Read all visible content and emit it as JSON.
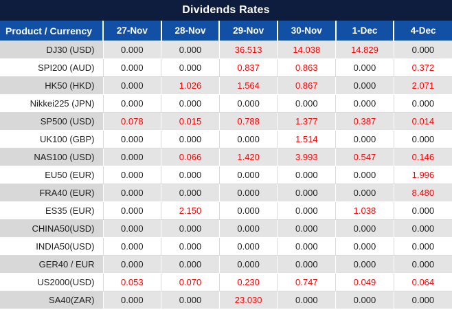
{
  "title": "Dividends Rates",
  "columns": [
    "Product / Currency",
    "27-Nov",
    "28-Nov",
    "29-Nov",
    "30-Nov",
    "1-Dec",
    "4-Dec"
  ],
  "rows": [
    {
      "product": "DJ30 (USD)",
      "values": [
        "0.000",
        "0.000",
        "36.513",
        "14.038",
        "14.829",
        "0.000"
      ],
      "red": [
        false,
        false,
        true,
        true,
        true,
        false
      ]
    },
    {
      "product": "SPI200 (AUD)",
      "values": [
        "0.000",
        "0.000",
        "0.837",
        "0.863",
        "0.000",
        "0.372"
      ],
      "red": [
        false,
        false,
        true,
        true,
        false,
        true
      ]
    },
    {
      "product": "HK50 (HKD)",
      "values": [
        "0.000",
        "1.026",
        "1.564",
        "0.867",
        "0.000",
        "2.071"
      ],
      "red": [
        false,
        true,
        true,
        true,
        false,
        true
      ]
    },
    {
      "product": "Nikkei225 (JPN)",
      "values": [
        "0.000",
        "0.000",
        "0.000",
        "0.000",
        "0.000",
        "0.000"
      ],
      "red": [
        false,
        false,
        false,
        false,
        false,
        false
      ]
    },
    {
      "product": "SP500 (USD)",
      "values": [
        "0.078",
        "0.015",
        "0.788",
        "1.377",
        "0.387",
        "0.014"
      ],
      "red": [
        true,
        true,
        true,
        true,
        true,
        true
      ]
    },
    {
      "product": "UK100 (GBP)",
      "values": [
        "0.000",
        "0.000",
        "0.000",
        "1.514",
        "0.000",
        "0.000"
      ],
      "red": [
        false,
        false,
        false,
        true,
        false,
        false
      ]
    },
    {
      "product": "NAS100 (USD)",
      "values": [
        "0.000",
        "0.066",
        "1.420",
        "3.993",
        "0.547",
        "0.146"
      ],
      "red": [
        false,
        true,
        true,
        true,
        true,
        true
      ]
    },
    {
      "product": "EU50 (EUR)",
      "values": [
        "0.000",
        "0.000",
        "0.000",
        "0.000",
        "0.000",
        "1.996"
      ],
      "red": [
        false,
        false,
        false,
        false,
        false,
        true
      ]
    },
    {
      "product": "FRA40 (EUR)",
      "values": [
        "0.000",
        "0.000",
        "0.000",
        "0.000",
        "0.000",
        "8.480"
      ],
      "red": [
        false,
        false,
        false,
        false,
        false,
        true
      ]
    },
    {
      "product": "ES35 (EUR)",
      "values": [
        "0.000",
        "2.150",
        "0.000",
        "0.000",
        "1.038",
        "0.000"
      ],
      "red": [
        false,
        true,
        false,
        false,
        true,
        false
      ]
    },
    {
      "product": "CHINA50(USD)",
      "values": [
        "0.000",
        "0.000",
        "0.000",
        "0.000",
        "0.000",
        "0.000"
      ],
      "red": [
        false,
        false,
        false,
        false,
        false,
        false
      ]
    },
    {
      "product": "INDIA50(USD)",
      "values": [
        "0.000",
        "0.000",
        "0.000",
        "0.000",
        "0.000",
        "0.000"
      ],
      "red": [
        false,
        false,
        false,
        false,
        false,
        false
      ]
    },
    {
      "product": "GER40 / EUR",
      "values": [
        "0.000",
        "0.000",
        "0.000",
        "0.000",
        "0.000",
        "0.000"
      ],
      "red": [
        false,
        false,
        false,
        false,
        false,
        false
      ]
    },
    {
      "product": "US2000(USD)",
      "values": [
        "0.053",
        "0.070",
        "0.230",
        "0.747",
        "0.049",
        "0.064"
      ],
      "red": [
        true,
        true,
        true,
        true,
        true,
        true
      ]
    },
    {
      "product": "SA40(ZAR)",
      "values": [
        "0.000",
        "0.000",
        "23.030",
        "0.000",
        "0.000",
        "0.000"
      ],
      "red": [
        false,
        false,
        true,
        false,
        false,
        false
      ]
    }
  ],
  "colors": {
    "title_bg": "#0E1D3D",
    "header_bg": "#1250A5",
    "row_alt_bg": "#E4E4E4",
    "row_alt_product_bg": "#D8D8D8",
    "row_bg": "#FFFFFF",
    "value_text": "#1D1D1D",
    "highlight_red": "#FF0000"
  }
}
